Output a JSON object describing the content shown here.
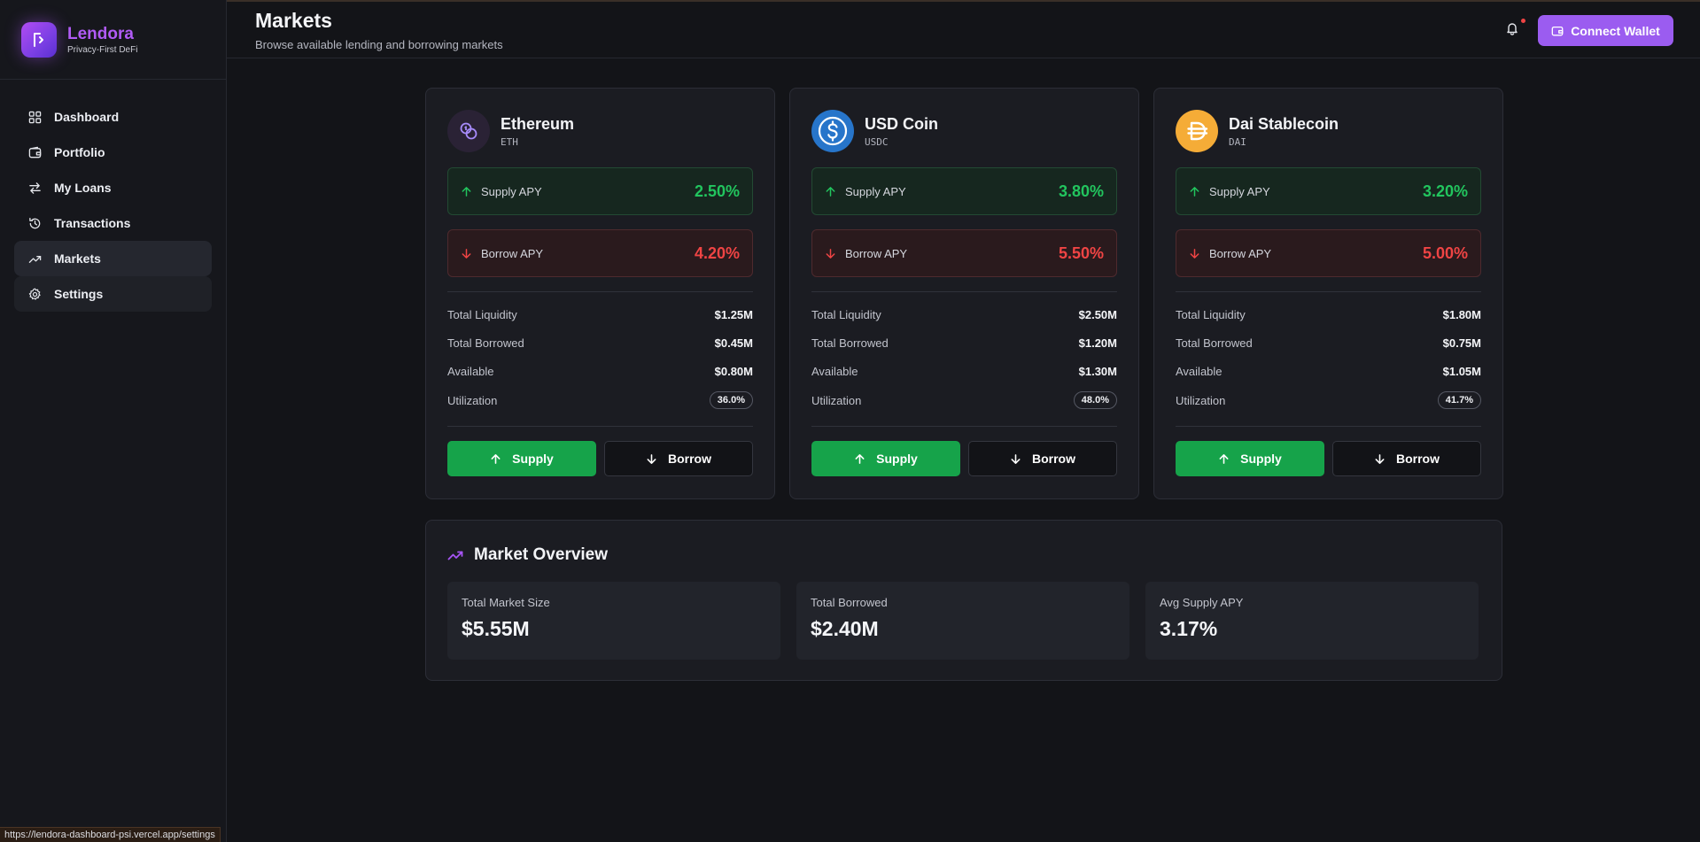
{
  "app": {
    "name": "Lendora",
    "tagline": "Privacy-First DeFi"
  },
  "sidebar": {
    "items": [
      {
        "label": "Dashboard",
        "icon": "grid-icon"
      },
      {
        "label": "Portfolio",
        "icon": "wallet-icon"
      },
      {
        "label": "My Loans",
        "icon": "arrows-exchange-icon"
      },
      {
        "label": "Transactions",
        "icon": "history-icon"
      },
      {
        "label": "Markets",
        "icon": "trending-up-icon",
        "active": true
      },
      {
        "label": "Settings",
        "icon": "gear-icon"
      }
    ]
  },
  "header": {
    "title": "Markets",
    "subtitle": "Browse available lending and borrowing markets",
    "connect_label": "Connect Wallet"
  },
  "labels": {
    "supply_apy": "Supply APY",
    "borrow_apy": "Borrow APY",
    "total_liquidity": "Total Liquidity",
    "total_borrowed": "Total Borrowed",
    "available": "Available",
    "utilization": "Utilization",
    "supply_btn": "Supply",
    "borrow_btn": "Borrow"
  },
  "markets": [
    {
      "name": "Ethereum",
      "symbol": "ETH",
      "supply_apy": "2.50%",
      "borrow_apy": "4.20%",
      "total_liquidity": "$1.25M",
      "total_borrowed": "$0.45M",
      "available": "$0.80M",
      "utilization": "36.0%",
      "icon": "eth-coins-icon"
    },
    {
      "name": "USD Coin",
      "symbol": "USDC",
      "supply_apy": "3.80%",
      "borrow_apy": "5.50%",
      "total_liquidity": "$2.50M",
      "total_borrowed": "$1.20M",
      "available": "$1.30M",
      "utilization": "48.0%",
      "icon": "usdc-icon"
    },
    {
      "name": "Dai Stablecoin",
      "symbol": "DAI",
      "supply_apy": "3.20%",
      "borrow_apy": "5.00%",
      "total_liquidity": "$1.80M",
      "total_borrowed": "$0.75M",
      "available": "$1.05M",
      "utilization": "41.7%",
      "icon": "dai-icon"
    }
  ],
  "overview": {
    "title": "Market Overview",
    "stats": [
      {
        "label": "Total Market Size",
        "value": "$5.55M"
      },
      {
        "label": "Total Borrowed",
        "value": "$2.40M"
      },
      {
        "label": "Avg Supply APY",
        "value": "3.17%"
      }
    ]
  },
  "statusbar": {
    "url": "https://lendora-dashboard-psi.vercel.app/settings"
  },
  "colors": {
    "accent": "#9b5cf0",
    "supply": "#22c55e",
    "borrow": "#ef4444",
    "usdc": "#2775ca",
    "dai": "#f5ac37"
  }
}
